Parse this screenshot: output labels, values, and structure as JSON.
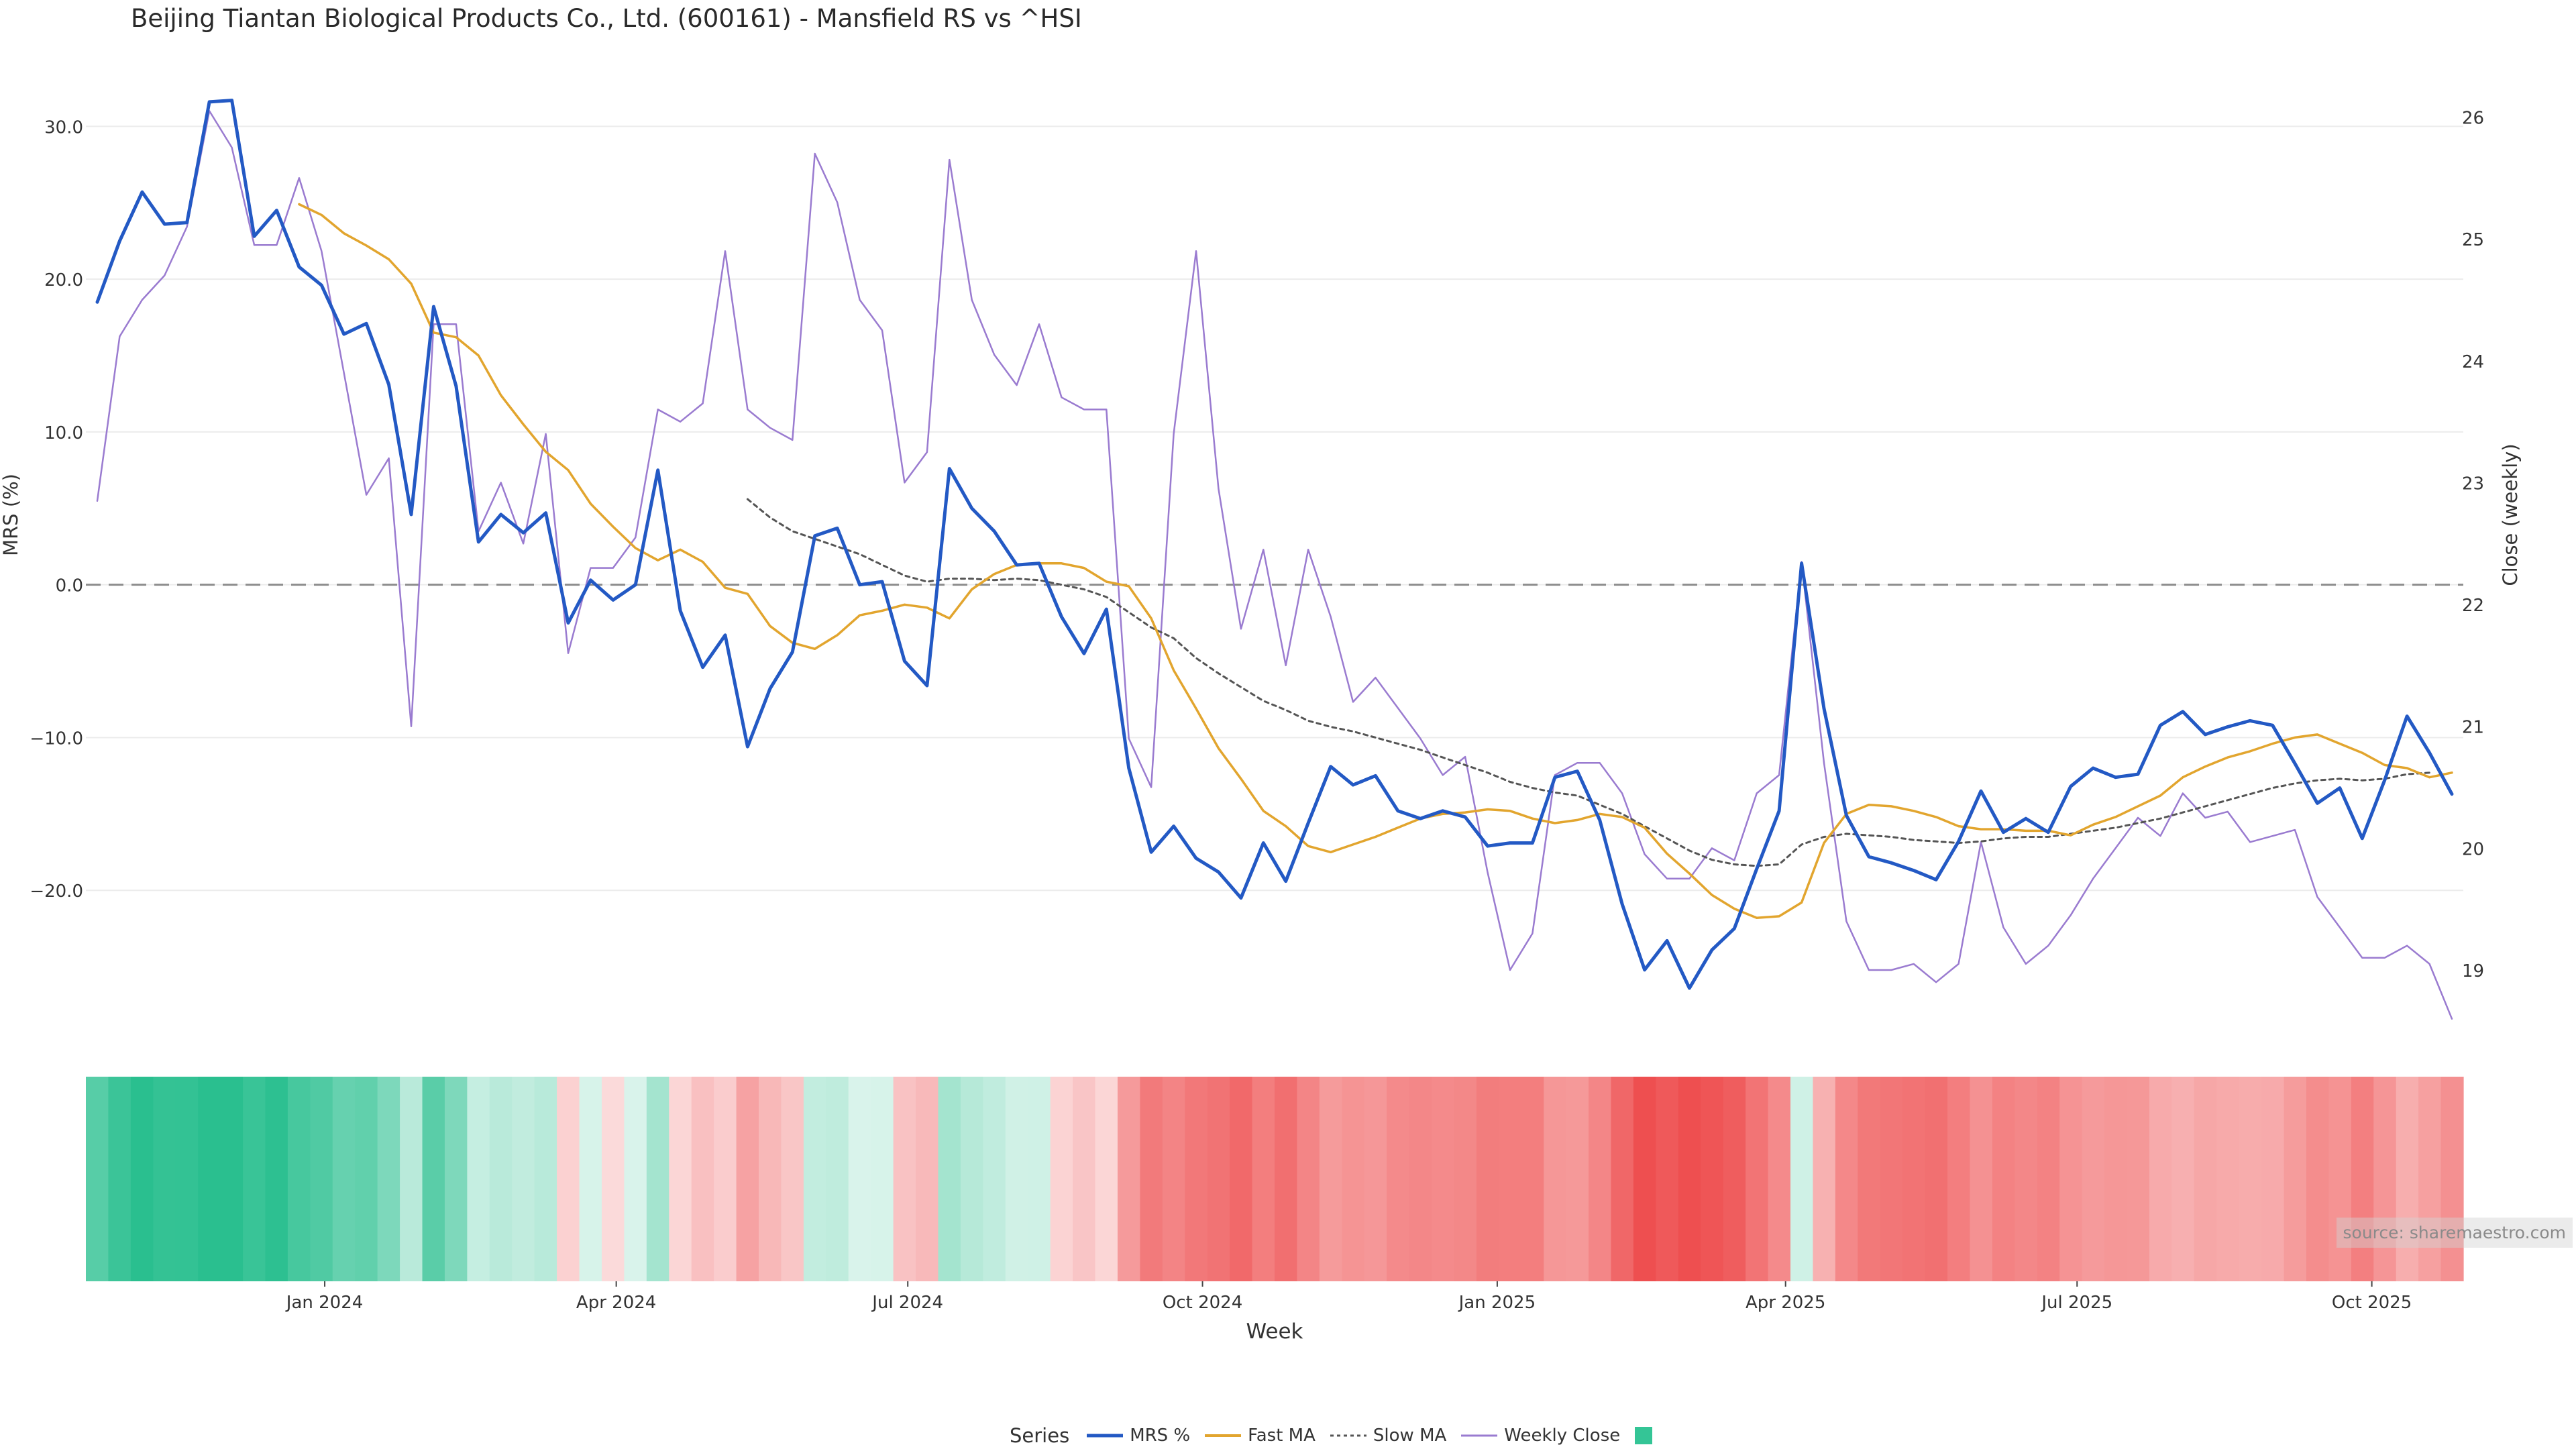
{
  "title": "Beijing Tiantan Biological Products Co., Ltd. (600161) - Mansfield RS vs ^HSI",
  "source": "source: sharemaestro.com",
  "chart_data": {
    "type": "line",
    "x_start": "2023-10-22",
    "x_step_days": 7,
    "xlabel": "Week",
    "ylabel_left": "MRS (%)",
    "ylabel_right": "Close (weekly)",
    "ylim_left": [
      -30,
      33
    ],
    "ylim_right": [
      18.4,
      26.3
    ],
    "yticks_left": [
      30,
      20,
      10,
      0,
      -10,
      -20
    ],
    "ytick_labels_left": [
      "30.0",
      "20.0",
      "10.0",
      "0.0",
      "−10.0",
      "−20.0"
    ],
    "yticks_right": [
      26,
      25,
      24,
      23,
      22,
      21,
      20,
      19
    ],
    "xticks": [
      {
        "label": "Jan 2024",
        "date": "2024-01-01"
      },
      {
        "label": "Apr 2024",
        "date": "2024-04-01"
      },
      {
        "label": "Jul 2024",
        "date": "2024-07-01"
      },
      {
        "label": "Oct 2024",
        "date": "2024-10-01"
      },
      {
        "label": "Jan 2025",
        "date": "2025-01-01"
      },
      {
        "label": "Apr 2025",
        "date": "2025-04-01"
      },
      {
        "label": "Jul 2025",
        "date": "2025-07-01"
      },
      {
        "label": "Oct 2025",
        "date": "2025-10-01"
      }
    ],
    "zero_line": 0,
    "series": [
      {
        "name": "MRS %",
        "axis": "left",
        "color": "#2359c4",
        "style": "solid",
        "width": 5,
        "values": [
          18.5,
          22.5,
          25.7,
          23.6,
          23.7,
          31.6,
          31.7,
          22.8,
          24.5,
          20.8,
          19.6,
          16.4,
          17.1,
          13.1,
          4.6,
          18.2,
          13.0,
          2.8,
          4.6,
          3.4,
          4.7,
          -2.5,
          0.3,
          -1.0,
          0.0,
          7.5,
          -1.7,
          -5.4,
          -3.3,
          -10.6,
          -6.8,
          -4.4,
          3.2,
          3.7,
          0.0,
          0.2,
          -5.0,
          -6.6,
          7.6,
          5.0,
          3.5,
          1.3,
          1.4,
          -2.1,
          -4.5,
          -1.6,
          -12.0,
          -17.5,
          -15.8,
          -17.9,
          -18.8,
          -20.5,
          -16.9,
          -19.4,
          -15.6,
          -11.9,
          -13.1,
          -12.5,
          -14.8,
          -15.3,
          -14.8,
          -15.2,
          -17.1,
          -16.9,
          -16.9,
          -12.6,
          -12.2,
          -15.4,
          -20.9,
          -25.2,
          -23.3,
          -26.4,
          -23.9,
          -22.5,
          -18.6,
          -14.8,
          1.4,
          -8.1,
          -15.1,
          -17.8,
          -18.2,
          -18.7,
          -19.3,
          -16.8,
          -13.5,
          -16.2,
          -15.3,
          -16.2,
          -13.2,
          -12.0,
          -12.6,
          -12.4,
          -9.2,
          -8.3,
          -9.8,
          -9.3,
          -8.9,
          -9.2,
          -11.7,
          -14.3,
          -13.3,
          -16.6,
          -12.8,
          -8.6,
          -11.0,
          -13.7
        ]
      },
      {
        "name": "Fast MA",
        "axis": "left",
        "color": "#e2a52e",
        "style": "solid",
        "width": 3.5,
        "values": [
          null,
          null,
          null,
          null,
          null,
          null,
          null,
          null,
          null,
          24.9,
          24.2,
          23.0,
          22.2,
          21.3,
          19.7,
          16.5,
          16.2,
          15.0,
          12.4,
          10.5,
          8.7,
          7.5,
          5.3,
          3.8,
          2.4,
          1.6,
          2.3,
          1.5,
          -0.2,
          -0.6,
          -2.7,
          -3.8,
          -4.2,
          -3.3,
          -2.0,
          -1.7,
          -1.3,
          -1.5,
          -2.2,
          -0.3,
          0.7,
          1.3,
          1.4,
          1.4,
          1.1,
          0.2,
          -0.1,
          -2.2,
          -5.6,
          -8.1,
          -10.7,
          -12.7,
          -14.8,
          -15.8,
          -17.1,
          -17.5,
          -17.0,
          -16.5,
          -15.9,
          -15.3,
          -15.0,
          -14.9,
          -14.7,
          -14.8,
          -15.3,
          -15.6,
          -15.4,
          -15.0,
          -15.2,
          -15.9,
          -17.6,
          -18.9,
          -20.3,
          -21.2,
          -21.8,
          -21.7,
          -20.8,
          -16.9,
          -15.0,
          -14.4,
          -14.5,
          -14.8,
          -15.2,
          -15.8,
          -16.0,
          -16.0,
          -16.1,
          -16.1,
          -16.4,
          -15.7,
          -15.2,
          -14.5,
          -13.8,
          -12.6,
          -11.9,
          -11.3,
          -10.9,
          -10.4,
          -10.0,
          -9.8,
          -10.4,
          -11.0,
          -11.8,
          -12.0,
          -12.6,
          -12.3
        ]
      },
      {
        "name": "Slow MA",
        "axis": "left",
        "color": "#555555",
        "style": "dotted",
        "width": 3,
        "values": [
          null,
          null,
          null,
          null,
          null,
          null,
          null,
          null,
          null,
          null,
          null,
          null,
          null,
          null,
          null,
          null,
          null,
          null,
          null,
          null,
          null,
          null,
          null,
          null,
          null,
          null,
          null,
          null,
          null,
          5.6,
          4.4,
          3.5,
          3.0,
          2.5,
          2.0,
          1.3,
          0.6,
          0.2,
          0.4,
          0.4,
          0.3,
          0.4,
          0.3,
          0.0,
          -0.3,
          -0.8,
          -1.8,
          -2.8,
          -3.5,
          -4.8,
          -5.8,
          -6.7,
          -7.6,
          -8.2,
          -8.9,
          -9.3,
          -9.6,
          -10.0,
          -10.4,
          -10.8,
          -11.3,
          -11.8,
          -12.3,
          -12.9,
          -13.3,
          -13.6,
          -13.8,
          -14.4,
          -15.0,
          -15.8,
          -16.6,
          -17.4,
          -18.0,
          -18.3,
          -18.4,
          -18.3,
          -17.0,
          -16.5,
          -16.3,
          -16.4,
          -16.5,
          -16.7,
          -16.8,
          -16.9,
          -16.8,
          -16.6,
          -16.5,
          -16.5,
          -16.3,
          -16.1,
          -15.9,
          -15.6,
          -15.3,
          -14.9,
          -14.5,
          -14.1,
          -13.7,
          -13.3,
          -13.0,
          -12.8,
          -12.7,
          -12.8,
          -12.7,
          -12.4,
          -12.3
        ]
      },
      {
        "name": "Weekly Close",
        "axis": "right",
        "color": "#9a7bd0",
        "style": "solid",
        "width": 2.5,
        "values": [
          22.85,
          24.2,
          24.5,
          24.7,
          25.1,
          26.05,
          25.75,
          24.95,
          24.95,
          25.5,
          24.9,
          23.9,
          22.9,
          23.2,
          21.0,
          24.3,
          24.3,
          22.6,
          23.0,
          22.5,
          23.4,
          21.6,
          22.3,
          22.3,
          22.55,
          23.6,
          23.5,
          23.65,
          24.9,
          23.6,
          23.45,
          23.35,
          25.7,
          25.3,
          24.5,
          24.25,
          23.0,
          23.25,
          25.65,
          24.5,
          24.05,
          23.8,
          24.3,
          23.7,
          23.6,
          23.6,
          20.9,
          20.5,
          23.4,
          24.9,
          22.95,
          21.8,
          22.45,
          21.5,
          22.45,
          21.9,
          21.2,
          21.4,
          21.15,
          20.9,
          20.6,
          20.75,
          19.8,
          19.0,
          19.3,
          20.6,
          20.7,
          20.7,
          20.45,
          19.95,
          19.75,
          19.75,
          20.0,
          19.9,
          20.45,
          20.6,
          22.35,
          20.7,
          19.4,
          19.0,
          19.0,
          19.05,
          18.9,
          19.05,
          20.05,
          19.35,
          19.05,
          19.2,
          19.45,
          19.75,
          20.0,
          20.25,
          20.1,
          20.45,
          20.25,
          20.3,
          20.05,
          20.1,
          20.15,
          19.6,
          19.35,
          19.1,
          19.1,
          19.2,
          19.05,
          18.6
        ]
      }
    ],
    "heatmap_band": {
      "description_note": "",
      "values": [
        18.5,
        22.5,
        25.7,
        23.6,
        23.7,
        31.6,
        31.7,
        22.8,
        24.5,
        20.8,
        19.6,
        16.4,
        17.1,
        13.1,
        4.6,
        18.2,
        13.0,
        2.8,
        4.6,
        3.4,
        4.7,
        -2.5,
        0.3,
        -1.0,
        0.0,
        7.5,
        -1.7,
        -5.4,
        -3.3,
        -10.6,
        -6.8,
        -4.4,
        3.2,
        3.7,
        0.0,
        0.2,
        -5.0,
        -6.6,
        7.6,
        5.0,
        3.5,
        1.3,
        1.4,
        -2.1,
        -4.5,
        -1.6,
        -12.0,
        -17.5,
        -15.8,
        -17.9,
        -18.8,
        -20.5,
        -16.9,
        -19.4,
        -15.6,
        -11.9,
        -13.1,
        -12.5,
        -14.8,
        -15.3,
        -14.8,
        -15.2,
        -17.1,
        -16.9,
        -16.9,
        -12.6,
        -12.2,
        -15.4,
        -20.9,
        -25.2,
        -23.3,
        -26.4,
        -23.9,
        -22.5,
        -18.6,
        -14.8,
        1.4,
        -8.1,
        -15.1,
        -17.8,
        -18.2,
        -18.7,
        -19.3,
        -16.8,
        -13.5,
        -16.2,
        -15.3,
        -16.2,
        -13.2,
        -12.0,
        -12.6,
        -12.4,
        -9.2,
        -8.3,
        -9.8,
        -9.3,
        -8.9,
        -9.2,
        -11.7,
        -14.3,
        -13.3,
        -16.6,
        -12.8,
        -8.6,
        -11.0,
        -13.7
      ],
      "positive_color": "#2abf8f",
      "negative_color": "#ee4f50"
    }
  },
  "legend": {
    "title": "Series",
    "items": [
      {
        "label": "MRS %",
        "color": "#2359c4",
        "style": "solid"
      },
      {
        "label": "Fast MA",
        "color": "#e2a52e",
        "style": "solid"
      },
      {
        "label": "Slow MA",
        "color": "#555555",
        "style": "dotted"
      },
      {
        "label": "Weekly Close",
        "color": "#9a7bd0",
        "style": "solid"
      }
    ],
    "swatch_color": "#34c596"
  }
}
